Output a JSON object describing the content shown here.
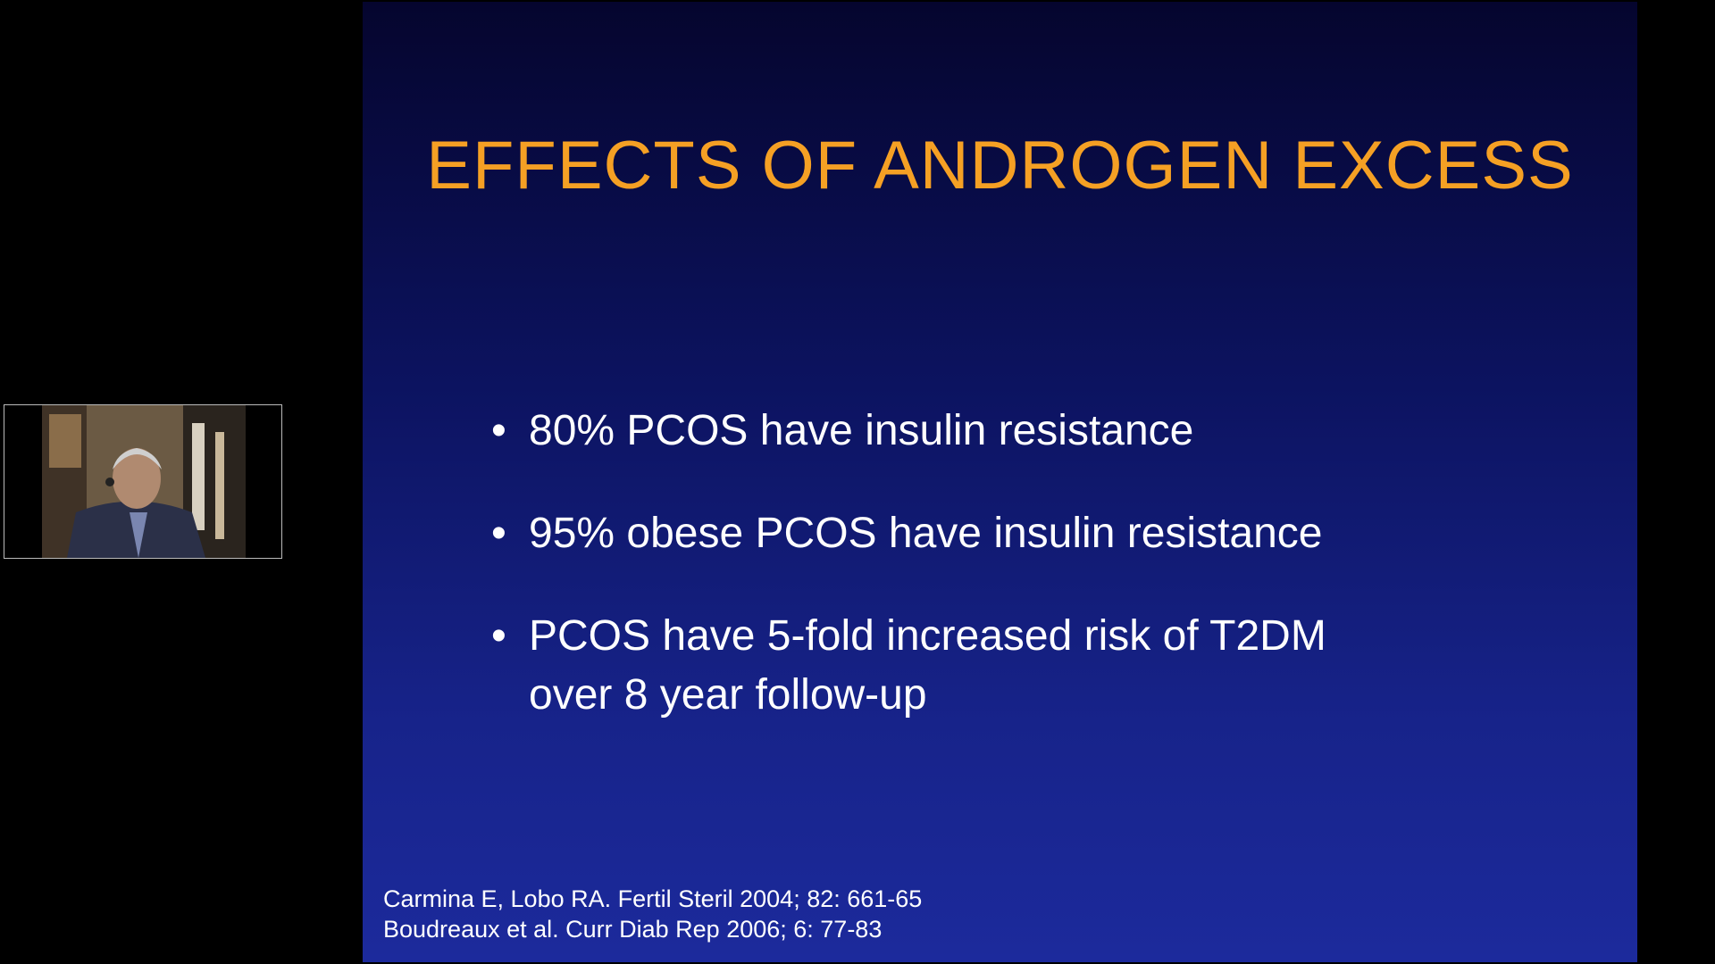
{
  "slide": {
    "title": "EFFECTS OF ANDROGEN EXCESS",
    "bullets": [
      [
        "80% PCOS have insulin resistance"
      ],
      [
        "95% obese PCOS have insulin resistance"
      ],
      [
        "PCOS have 5-fold increased risk of T2DM",
        "over 8 year follow-up"
      ]
    ],
    "references": [
      "Carmina E, Lobo RA. Fertil Steril 2004; 82: 661-65",
      "Boudreaux et al. Curr Diab Rep 2006; 6: 77-83"
    ]
  }
}
